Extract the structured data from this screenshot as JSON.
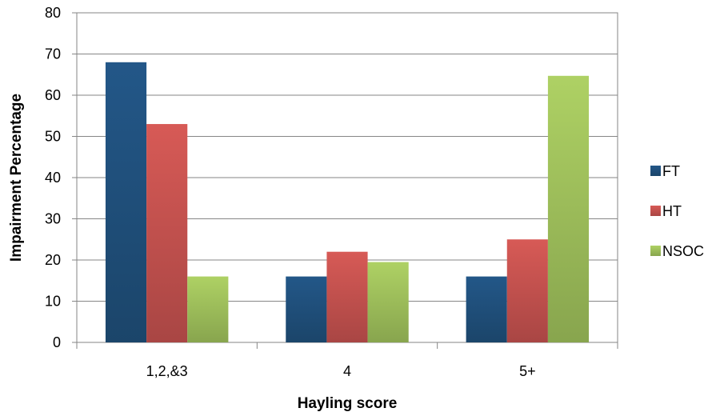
{
  "chart_data": {
    "type": "bar",
    "categories": [
      "1,2,&3",
      "4",
      "5+"
    ],
    "series": [
      {
        "name": "FT",
        "values": [
          68,
          16,
          16
        ],
        "color": "#1f4e79"
      },
      {
        "name": "HT",
        "values": [
          53,
          22,
          25
        ],
        "color": "#c0504d"
      },
      {
        "name": "NSOC",
        "values": [
          16,
          19.5,
          64.7
        ],
        "color": "#9bbb59"
      }
    ],
    "title": "",
    "xlabel": "Hayling score",
    "ylabel": "Impairment Percentage",
    "ylim": [
      0,
      80
    ],
    "yticks": [
      0,
      10,
      20,
      30,
      40,
      50,
      60,
      70,
      80
    ],
    "grid": true,
    "legend_position": "right"
  }
}
